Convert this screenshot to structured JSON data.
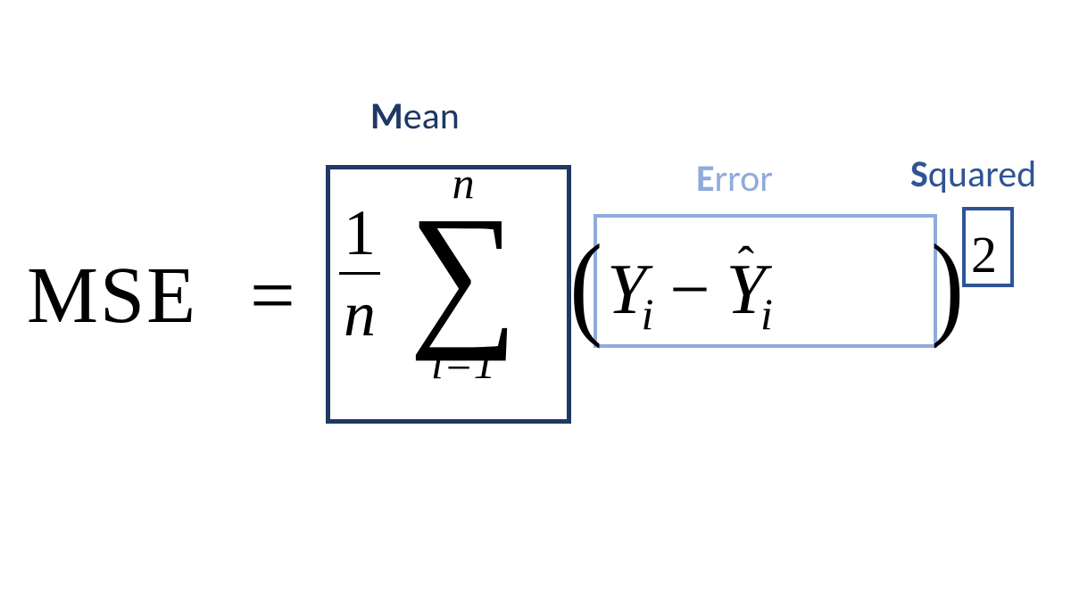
{
  "labels": {
    "mean": {
      "bold": "M",
      "rest": "ean",
      "color": "#1f3864"
    },
    "error": {
      "bold": "E",
      "rest": "rror",
      "color": "#8faadc"
    },
    "squared": {
      "bold": "S",
      "rest": "quared",
      "color": "#2f5496"
    }
  },
  "equation": {
    "lhs": "MSE",
    "equals": "=",
    "fraction": {
      "numerator": "1",
      "denominator": "n"
    },
    "sigma": {
      "upper": "n",
      "symbol": "∑",
      "lower": "i=1"
    },
    "paren_left": "(",
    "term1_var": "Y",
    "term1_sub": "i",
    "minus": "−",
    "term2_hat": "ˆ",
    "term2_var": "Y",
    "term2_sub": "i",
    "paren_right": ")",
    "exponent": "2"
  },
  "boxes": {
    "mean_color": "#1f3864",
    "error_color": "#8faadc",
    "squared_color": "#2f5496"
  },
  "colors": {
    "text": "#000000",
    "background": "#ffffff"
  },
  "typography": {
    "formula_font": "Times New Roman, serif",
    "label_font": "Calibri, Segoe UI, Arial, sans-serif",
    "formula_base_size": 90,
    "label_size": 42
  }
}
